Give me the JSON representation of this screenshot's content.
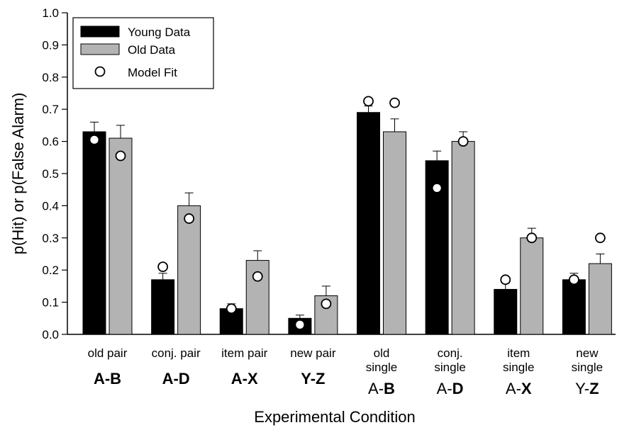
{
  "chart_data": {
    "type": "bar",
    "ylabel": "p(Hit) or p(False Alarm)",
    "xlabel": "Experimental Condition",
    "ylim": [
      0,
      1.0
    ],
    "yticks": [
      "0.0",
      "0.1",
      "0.2",
      "0.3",
      "0.4",
      "0.5",
      "0.6",
      "0.7",
      "0.8",
      "0.9",
      "1.0"
    ],
    "legend_position": "top-left",
    "categories": [
      {
        "line1": "old   pair",
        "line2": "",
        "pair_a": "A-",
        "pair_b": "B",
        "a_bold": true
      },
      {
        "line1": "conj. pair",
        "line2": "",
        "pair_a": "A-",
        "pair_b": "D",
        "a_bold": true
      },
      {
        "line1": "item pair",
        "line2": "",
        "pair_a": "A-",
        "pair_b": "X",
        "a_bold": true
      },
      {
        "line1": "new pair",
        "line2": "",
        "pair_a": "Y-",
        "pair_b": "Z",
        "a_bold": true
      },
      {
        "line1": "old",
        "line2": "single",
        "pair_a": "A-",
        "pair_b": "B",
        "a_bold": false
      },
      {
        "line1": "conj.",
        "line2": "single",
        "pair_a": "A-",
        "pair_b": "D",
        "a_bold": false
      },
      {
        "line1": "item",
        "line2": "single",
        "pair_a": "A-",
        "pair_b": "X",
        "a_bold": false
      },
      {
        "line1": "new",
        "line2": "single",
        "pair_a": "Y-",
        "pair_b": "Z",
        "a_bold": false
      }
    ],
    "series": [
      {
        "name": "Young Data",
        "color": "#000000",
        "values": [
          0.63,
          0.17,
          0.08,
          0.05,
          0.69,
          0.54,
          0.14,
          0.17
        ],
        "errors": [
          0.03,
          0.02,
          0.015,
          0.01,
          0.02,
          0.03,
          0.02,
          0.02
        ],
        "model_fit": [
          0.605,
          0.21,
          0.08,
          0.03,
          0.725,
          0.455,
          0.17,
          0.17
        ]
      },
      {
        "name": "Old Data",
        "color": "#b3b3b3",
        "values": [
          0.61,
          0.4,
          0.23,
          0.12,
          0.63,
          0.6,
          0.3,
          0.22
        ],
        "errors": [
          0.04,
          0.04,
          0.03,
          0.03,
          0.04,
          0.03,
          0.03,
          0.03
        ],
        "model_fit": [
          0.555,
          0.36,
          0.18,
          0.095,
          0.72,
          0.6,
          0.3,
          0.3
        ]
      }
    ],
    "model_fit_label": "Model Fit"
  }
}
